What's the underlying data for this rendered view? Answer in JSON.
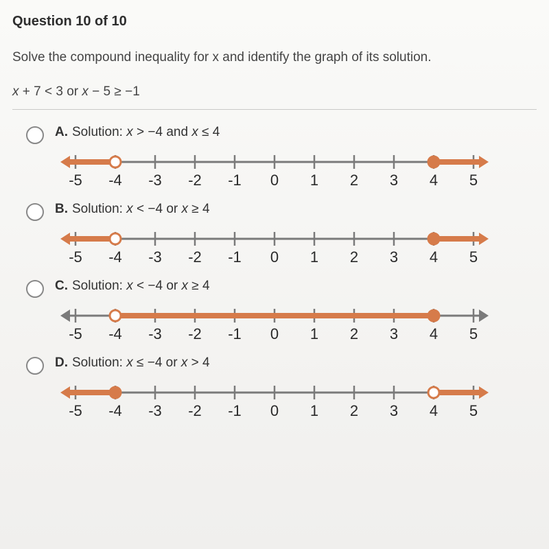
{
  "header": {
    "title": "Question 10 of 10"
  },
  "question": {
    "prompt_pre": "Solve the compound inequality for ",
    "prompt_var": "x",
    "prompt_post": " and identify the graph of its solution.",
    "inequality_parts": [
      "x",
      " + 7 < 3 or ",
      "x",
      " − 5 ≥ −1"
    ]
  },
  "axis": {
    "min": -5,
    "max": 5,
    "tick_step": 1,
    "labels": [
      "-5",
      "-4",
      "-3",
      "-2",
      "-1",
      "0",
      "1",
      "2",
      "3",
      "4",
      "5"
    ],
    "axis_color": "#7a7a7a",
    "seg_color": "#d67b4a",
    "point_open_fill": "#ffffff",
    "point_closed_fill": "#d67b4a",
    "point_stroke": "#d67b4a",
    "point_radius": 8,
    "point_stroke_width": 3
  },
  "choices": [
    {
      "letter": "A.",
      "text_parts": [
        "Solution: ",
        "x",
        " > −4 and ",
        "x",
        " ≤ 4"
      ],
      "segments": [
        {
          "from": "left_arrow",
          "to": -4,
          "color": "#d67b4a"
        },
        {
          "from": 4,
          "to": "right_arrow",
          "color": "#d67b4a"
        }
      ],
      "left_arrow_color": "#d67b4a",
      "right_arrow_color": "#d67b4a",
      "points": [
        {
          "at": -4,
          "type": "open"
        },
        {
          "at": 4,
          "type": "closed"
        }
      ]
    },
    {
      "letter": "B.",
      "text_parts": [
        "Solution: ",
        "x",
        " < −4 or ",
        "x",
        " ≥ 4"
      ],
      "segments": [
        {
          "from": "left_arrow",
          "to": -4,
          "color": "#d67b4a"
        },
        {
          "from": 4,
          "to": "right_arrow",
          "color": "#d67b4a"
        }
      ],
      "left_arrow_color": "#d67b4a",
      "right_arrow_color": "#d67b4a",
      "points": [
        {
          "at": -4,
          "type": "open"
        },
        {
          "at": 4,
          "type": "closed"
        }
      ]
    },
    {
      "letter": "C.",
      "text_parts": [
        "Solution: ",
        "x",
        " < −4 or ",
        "x",
        " ≥ 4"
      ],
      "segments": [
        {
          "from": -4,
          "to": 4,
          "color": "#d67b4a"
        }
      ],
      "left_arrow_color": "#7a7a7a",
      "right_arrow_color": "#7a7a7a",
      "points": [
        {
          "at": -4,
          "type": "open"
        },
        {
          "at": 4,
          "type": "closed"
        }
      ]
    },
    {
      "letter": "D.",
      "text_parts": [
        "Solution: ",
        "x",
        " ≤ −4 or ",
        "x",
        " > 4"
      ],
      "segments": [
        {
          "from": "left_arrow",
          "to": -4,
          "color": "#d67b4a"
        },
        {
          "from": 4,
          "to": "right_arrow",
          "color": "#d67b4a"
        }
      ],
      "left_arrow_color": "#d67b4a",
      "right_arrow_color": "#d67b4a",
      "points": [
        {
          "at": -4,
          "type": "closed"
        },
        {
          "at": 4,
          "type": "open"
        }
      ]
    }
  ]
}
